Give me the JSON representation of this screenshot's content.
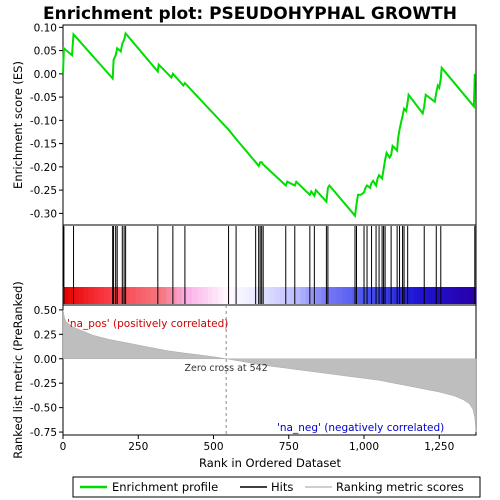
{
  "title": "Enrichment plot: PSEUDOHYPHAL GROWTH",
  "colors": {
    "es_line": "#00dd00",
    "hits": "#000000",
    "metric_fill": "#bebebe",
    "pos_label": "#cc0000",
    "neg_label": "#0000cc"
  },
  "chart_data": [
    {
      "type": "line",
      "name": "enrichment-profile",
      "ylabel": "Enrichment score (ES)",
      "xlim": [
        0,
        1372
      ],
      "ylim": [
        -0.325,
        0.105
      ],
      "yticks": [
        0.1,
        0.05,
        0.0,
        -0.05,
        -0.1,
        -0.15,
        -0.2,
        -0.25,
        -0.3
      ],
      "ytick_labels": [
        "0.10",
        "0.05",
        "0.00",
        "-0.05",
        "-0.10",
        "-0.15",
        "-0.20",
        "-0.25",
        "-0.30"
      ],
      "grid": false,
      "points": [
        [
          0,
          0.0
        ],
        [
          3,
          0.055
        ],
        [
          30,
          0.04
        ],
        [
          35,
          0.085
        ],
        [
          165,
          -0.01
        ],
        [
          168,
          0.03
        ],
        [
          175,
          0.04
        ],
        [
          180,
          0.055
        ],
        [
          192,
          0.048
        ],
        [
          197,
          0.065
        ],
        [
          203,
          0.073
        ],
        [
          208,
          0.087
        ],
        [
          315,
          0.005
        ],
        [
          318,
          0.02
        ],
        [
          360,
          -0.008
        ],
        [
          365,
          0.0
        ],
        [
          400,
          -0.025
        ],
        [
          405,
          -0.02
        ],
        [
          550,
          -0.12
        ],
        [
          575,
          -0.14
        ],
        [
          640,
          -0.19
        ],
        [
          650,
          -0.198
        ],
        [
          655,
          -0.19
        ],
        [
          660,
          -0.19
        ],
        [
          665,
          -0.195
        ],
        [
          740,
          -0.24
        ],
        [
          745,
          -0.232
        ],
        [
          770,
          -0.24
        ],
        [
          775,
          -0.232
        ],
        [
          820,
          -0.26
        ],
        [
          825,
          -0.253
        ],
        [
          835,
          -0.262
        ],
        [
          840,
          -0.25
        ],
        [
          875,
          -0.275
        ],
        [
          880,
          -0.245
        ],
        [
          885,
          -0.24
        ],
        [
          970,
          -0.305
        ],
        [
          975,
          -0.28
        ],
        [
          980,
          -0.26
        ],
        [
          990,
          -0.26
        ],
        [
          1000,
          -0.255
        ],
        [
          1005,
          -0.245
        ],
        [
          1010,
          -0.24
        ],
        [
          1020,
          -0.245
        ],
        [
          1025,
          -0.235
        ],
        [
          1030,
          -0.23
        ],
        [
          1040,
          -0.24
        ],
        [
          1045,
          -0.225
        ],
        [
          1050,
          -0.218
        ],
        [
          1060,
          -0.225
        ],
        [
          1065,
          -0.205
        ],
        [
          1070,
          -0.185
        ],
        [
          1075,
          -0.17
        ],
        [
          1085,
          -0.18
        ],
        [
          1090,
          -0.175
        ],
        [
          1095,
          -0.155
        ],
        [
          1110,
          -0.165
        ],
        [
          1113,
          -0.14
        ],
        [
          1118,
          -0.12
        ],
        [
          1123,
          -0.105
        ],
        [
          1128,
          -0.09
        ],
        [
          1133,
          -0.075
        ],
        [
          1140,
          -0.08
        ],
        [
          1145,
          -0.06
        ],
        [
          1148,
          -0.045
        ],
        [
          1195,
          -0.085
        ],
        [
          1200,
          -0.07
        ],
        [
          1205,
          -0.045
        ],
        [
          1235,
          -0.06
        ],
        [
          1240,
          -0.04
        ],
        [
          1245,
          -0.025
        ],
        [
          1250,
          -0.03
        ],
        [
          1255,
          -0.01
        ],
        [
          1258,
          0.013
        ],
        [
          1365,
          -0.07
        ],
        [
          1368,
          0.0
        ]
      ]
    },
    {
      "type": "bar",
      "name": "hits",
      "ylabel": "",
      "xlim": [
        0,
        1372
      ],
      "x": [
        3,
        35,
        165,
        168,
        175,
        180,
        197,
        203,
        208,
        315,
        365,
        405,
        550,
        575,
        640,
        650,
        655,
        660,
        665,
        740,
        770,
        820,
        835,
        875,
        880,
        970,
        975,
        1000,
        1010,
        1025,
        1040,
        1050,
        1060,
        1065,
        1070,
        1090,
        1110,
        1118,
        1128,
        1133,
        1145,
        1200,
        1240,
        1255,
        1368
      ]
    },
    {
      "type": "area",
      "name": "ranked-list-metric",
      "xlabel": "Rank in Ordered Dataset",
      "ylabel": "Ranked list metric (PreRanked)",
      "xlim": [
        0,
        1372
      ],
      "ylim": [
        -0.78,
        0.55
      ],
      "xticks": [
        0,
        250,
        500,
        750,
        1000,
        1250
      ],
      "xtick_labels": [
        "0",
        "250",
        "500",
        "750",
        "1,000",
        "1,250"
      ],
      "yticks": [
        0.5,
        0.25,
        0.0,
        -0.25,
        -0.5,
        -0.75
      ],
      "ytick_labels": [
        "0.50",
        "0.25",
        "0.00",
        "-0.25",
        "-0.50",
        "-0.75"
      ],
      "zero_cross_rank": 542,
      "points": [
        [
          0,
          0.5
        ],
        [
          5,
          0.42
        ],
        [
          10,
          0.38
        ],
        [
          30,
          0.33
        ],
        [
          60,
          0.29
        ],
        [
          100,
          0.24
        ],
        [
          150,
          0.2
        ],
        [
          200,
          0.17
        ],
        [
          250,
          0.14
        ],
        [
          300,
          0.11
        ],
        [
          350,
          0.08
        ],
        [
          400,
          0.06
        ],
        [
          450,
          0.04
        ],
        [
          500,
          0.02
        ],
        [
          542,
          0.0
        ],
        [
          600,
          -0.03
        ],
        [
          650,
          -0.06
        ],
        [
          700,
          -0.08
        ],
        [
          750,
          -0.1
        ],
        [
          800,
          -0.12
        ],
        [
          850,
          -0.14
        ],
        [
          900,
          -0.16
        ],
        [
          950,
          -0.18
        ],
        [
          1000,
          -0.2
        ],
        [
          1050,
          -0.22
        ],
        [
          1100,
          -0.25
        ],
        [
          1150,
          -0.28
        ],
        [
          1200,
          -0.31
        ],
        [
          1250,
          -0.34
        ],
        [
          1300,
          -0.38
        ],
        [
          1330,
          -0.42
        ],
        [
          1350,
          -0.46
        ],
        [
          1362,
          -0.52
        ],
        [
          1368,
          -0.6
        ],
        [
          1372,
          -0.75
        ]
      ]
    }
  ],
  "annotations": {
    "pos_label": "'na_pos' (positively correlated)",
    "neg_label": "'na_neg' (negatively correlated)",
    "zero_cross": "Zero cross at 542"
  },
  "legend": {
    "items": [
      "Enrichment profile",
      "Hits",
      "Ranking metric scores"
    ]
  }
}
